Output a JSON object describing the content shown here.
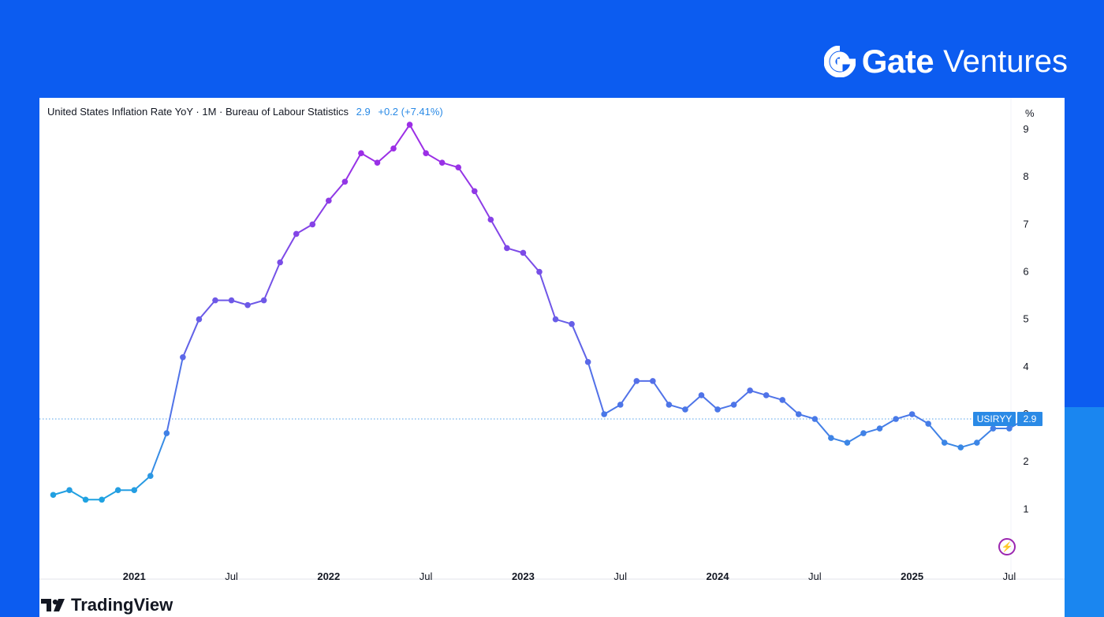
{
  "brand": {
    "name_bold": "Gate",
    "name_light": "Ventures"
  },
  "header": {
    "title": "United States Inflation Rate YoY · 1M · Bureau of Labour Statistics",
    "value": "2.9",
    "change": "+0.2 (+7.41%)",
    "unit": "%"
  },
  "footer": {
    "logo_text": "TradingView"
  },
  "colors": {
    "background": "#0c5cf0",
    "line_low": "#1aa7e0",
    "line_mid": "#4a78e8",
    "line_high": "#9c2ee6",
    "label": "#2a8ae6"
  },
  "icons": {
    "bolt": "lightning-bolt-icon"
  },
  "chart_data": {
    "type": "line",
    "title": "United States Inflation Rate YoY",
    "ylabel": "%",
    "ylim": [
      0.2,
      9.8
    ],
    "yticks": [
      1,
      2,
      3,
      4,
      5,
      6,
      7,
      8,
      9
    ],
    "grid": false,
    "x_ticks": [
      {
        "label": "2021",
        "date": "2021-01"
      },
      {
        "label": "Jul",
        "date": "2021-07"
      },
      {
        "label": "2022",
        "date": "2022-01"
      },
      {
        "label": "Jul",
        "date": "2022-07"
      },
      {
        "label": "2023",
        "date": "2023-01"
      },
      {
        "label": "Jul",
        "date": "2023-07"
      },
      {
        "label": "2024",
        "date": "2024-01"
      },
      {
        "label": "Jul",
        "date": "2024-07"
      },
      {
        "label": "2025",
        "date": "2025-01"
      },
      {
        "label": "Jul",
        "date": "2025-07"
      }
    ],
    "x": [
      "2020-08",
      "2020-09",
      "2020-10",
      "2020-11",
      "2020-12",
      "2021-01",
      "2021-02",
      "2021-03",
      "2021-04",
      "2021-05",
      "2021-06",
      "2021-07",
      "2021-08",
      "2021-09",
      "2021-10",
      "2021-11",
      "2021-12",
      "2022-01",
      "2022-02",
      "2022-03",
      "2022-04",
      "2022-05",
      "2022-06",
      "2022-07",
      "2022-08",
      "2022-09",
      "2022-10",
      "2022-11",
      "2022-12",
      "2023-01",
      "2023-02",
      "2023-03",
      "2023-04",
      "2023-05",
      "2023-06",
      "2023-07",
      "2023-08",
      "2023-09",
      "2023-10",
      "2023-11",
      "2023-12",
      "2024-01",
      "2024-02",
      "2024-03",
      "2024-04",
      "2024-05",
      "2024-06",
      "2024-07",
      "2024-08",
      "2024-09",
      "2024-10",
      "2024-11",
      "2024-12",
      "2025-01",
      "2025-02",
      "2025-03",
      "2025-04",
      "2025-05",
      "2025-06",
      "2025-07",
      "2025-08"
    ],
    "series": [
      {
        "name": "USIRYY",
        "values": [
          1.3,
          1.4,
          1.2,
          1.2,
          1.4,
          1.4,
          1.7,
          2.6,
          4.2,
          5.0,
          5.4,
          5.4,
          5.3,
          5.4,
          6.2,
          6.8,
          7.0,
          7.5,
          7.9,
          8.5,
          8.3,
          8.6,
          9.1,
          8.5,
          8.3,
          8.2,
          7.7,
          7.1,
          6.5,
          6.4,
          6.0,
          5.0,
          4.9,
          4.1,
          3.0,
          3.2,
          3.7,
          3.7,
          3.2,
          3.1,
          3.4,
          3.1,
          3.2,
          3.5,
          3.4,
          3.3,
          3.0,
          2.9,
          2.5,
          2.4,
          2.6,
          2.7,
          2.9,
          3.0,
          2.8,
          2.4,
          2.3,
          2.4,
          2.7,
          2.7,
          2.9
        ]
      }
    ],
    "last_value_label": {
      "symbol": "USIRYY",
      "value": "2.9"
    },
    "reference_line": 2.9
  }
}
